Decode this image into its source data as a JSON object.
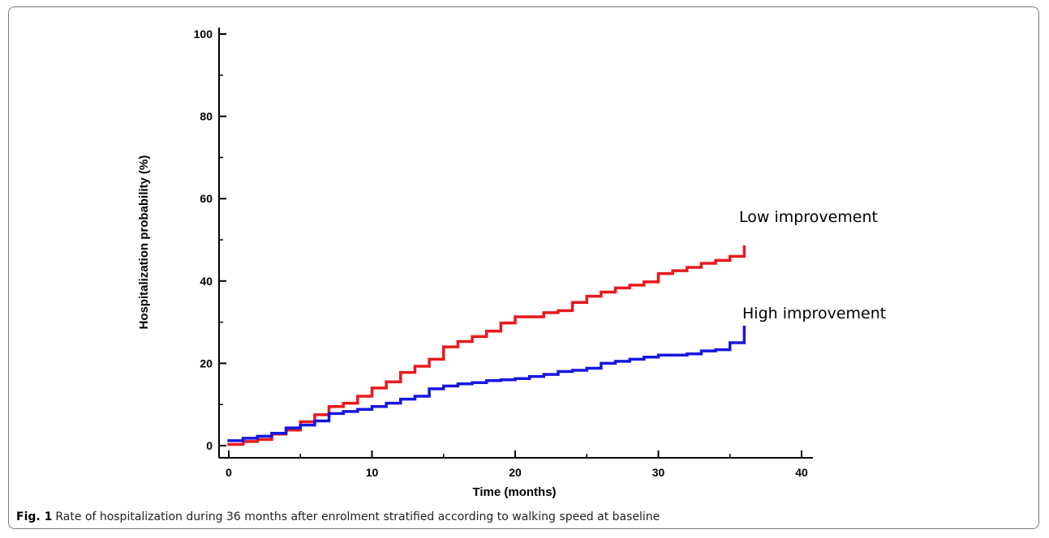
{
  "caption": {
    "label": "Fig. 1",
    "text": "Rate of hospitalization during 36 months after enrolment stratified according to walking speed at baseline"
  },
  "chart_data": {
    "type": "line",
    "step": true,
    "title": "",
    "xlabel": "Time (months)",
    "ylabel": "Hospitalization probability (%)",
    "xlim": [
      0,
      40
    ],
    "ylim": [
      0,
      100
    ],
    "xticks": [
      0,
      10,
      20,
      30,
      40
    ],
    "yticks": [
      0,
      20,
      40,
      60,
      80,
      100
    ],
    "grid": false,
    "series": [
      {
        "name": "Low improvement",
        "color": "#e8191c",
        "x": [
          0,
          1,
          2,
          3,
          4,
          5,
          6,
          7,
          8,
          9,
          10,
          11,
          12,
          13,
          14,
          15,
          16,
          17,
          18,
          19,
          20,
          21,
          22,
          23,
          24,
          25,
          26,
          27,
          28,
          29,
          30,
          31,
          32,
          33,
          34,
          35,
          36,
          36
        ],
        "y": [
          0.3,
          1.0,
          1.5,
          2.8,
          3.8,
          5.8,
          7.5,
          9.5,
          10.3,
          12.0,
          14.0,
          15.5,
          17.8,
          19.3,
          21.0,
          24.0,
          25.3,
          26.5,
          27.8,
          29.8,
          31.3,
          31.3,
          32.3,
          32.8,
          34.8,
          36.3,
          37.3,
          38.3,
          39.0,
          39.8,
          41.8,
          42.5,
          43.3,
          44.3,
          45.0,
          46.0,
          46.0,
          48.3
        ]
      },
      {
        "name": "High improvement",
        "color": "#1616e0",
        "x": [
          0,
          1,
          2,
          3,
          4,
          5,
          6,
          7,
          8,
          9,
          10,
          11,
          12,
          13,
          14,
          15,
          16,
          17,
          18,
          19,
          20,
          21,
          22,
          23,
          24,
          25,
          26,
          27,
          28,
          29,
          30,
          31,
          32,
          33,
          34,
          35,
          36,
          36
        ],
        "y": [
          1.2,
          1.8,
          2.3,
          3.0,
          4.3,
          5.0,
          6.0,
          7.8,
          8.3,
          8.8,
          9.5,
          10.3,
          11.3,
          12.0,
          13.8,
          14.5,
          15.0,
          15.3,
          15.8,
          16.0,
          16.3,
          16.8,
          17.3,
          18.0,
          18.3,
          18.8,
          20.0,
          20.5,
          21.0,
          21.5,
          22.0,
          22.0,
          22.3,
          23.0,
          23.3,
          25.0,
          25.8,
          28.8
        ]
      }
    ]
  }
}
